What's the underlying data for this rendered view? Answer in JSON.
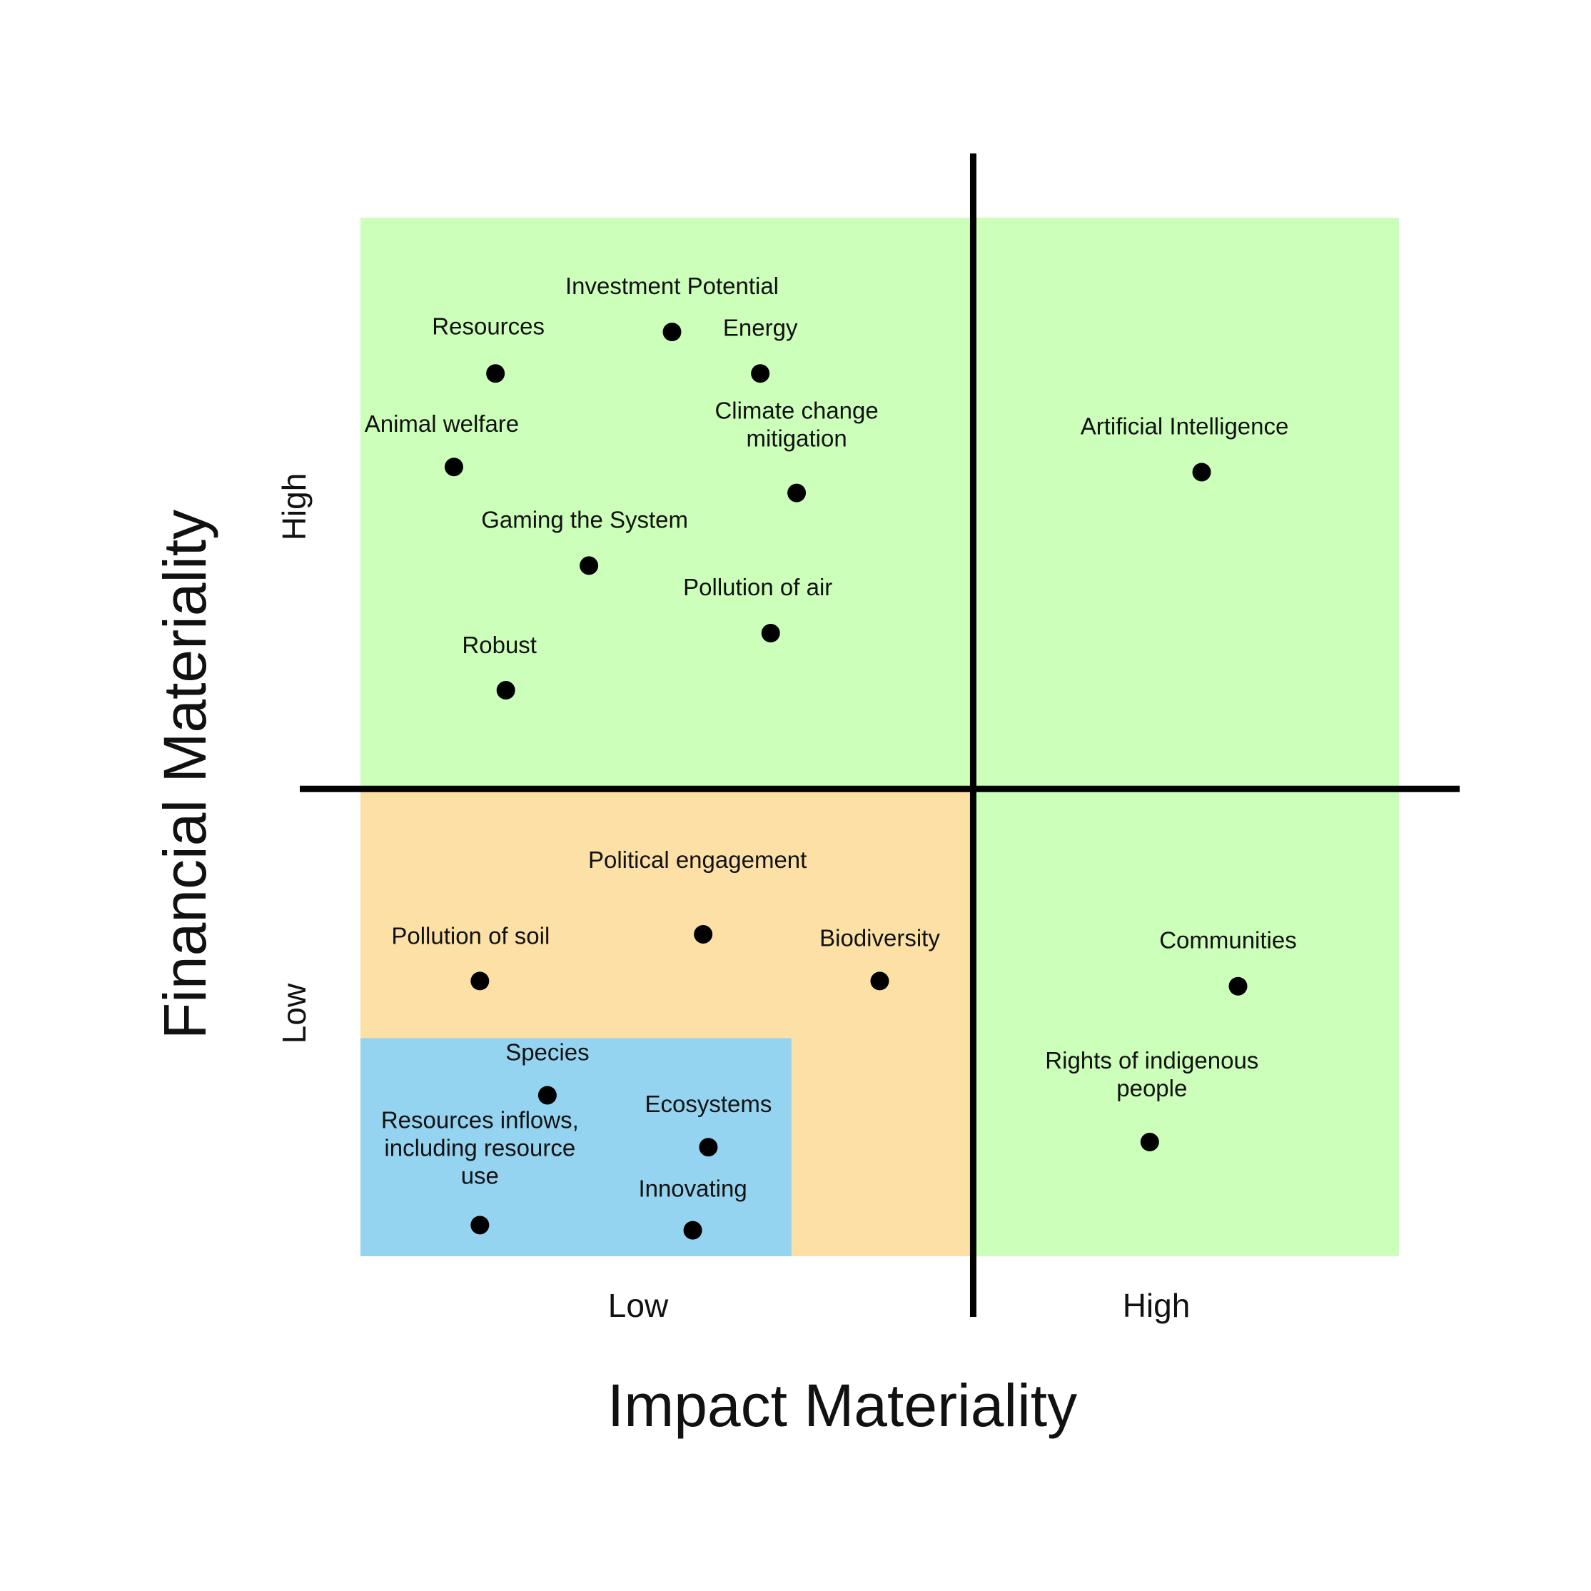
{
  "chart_data": {
    "type": "scatter",
    "title": "",
    "xlabel": "Impact Materiality",
    "ylabel": "Financial Materiality",
    "x_ticks": [
      "Low",
      "High"
    ],
    "y_ticks": [
      "Low",
      "High"
    ],
    "xlim": [
      0,
      100
    ],
    "ylim": [
      0,
      100
    ],
    "grid": false,
    "legend": "none",
    "colors": {
      "green": "#ccffb9",
      "orange": "#fce0a6",
      "blue": "#94d4f0",
      "axis": "#000000",
      "point": "#000000"
    },
    "regions": [
      {
        "color": "green",
        "x": [
          0,
          100
        ],
        "y": [
          0,
          100
        ]
      },
      {
        "color": "orange",
        "x": [
          0,
          59
        ],
        "y": [
          0,
          45
        ]
      },
      {
        "color": "blue",
        "x": [
          0,
          41.5
        ],
        "y": [
          0,
          21
        ]
      }
    ],
    "divider": {
      "x": 59,
      "y": 45
    },
    "points": [
      {
        "label": "Investment Potential",
        "x": 30,
        "y": 89
      },
      {
        "label": "Resources",
        "x": 13,
        "y": 85
      },
      {
        "label": "Energy",
        "x": 38.5,
        "y": 85
      },
      {
        "label": "Animal welfare",
        "x": 9,
        "y": 76
      },
      {
        "label": "Climate change mitigation",
        "x": 42,
        "y": 73.5
      },
      {
        "label": "Artificial Intelligence",
        "x": 81,
        "y": 75.5
      },
      {
        "label": "Gaming the System",
        "x": 22,
        "y": 66.5
      },
      {
        "label": "Pollution of air",
        "x": 39.5,
        "y": 60
      },
      {
        "label": "Robust",
        "x": 14,
        "y": 54.5
      },
      {
        "label": "Political engagement",
        "x": 33,
        "y": 31
      },
      {
        "label": "Pollution of soil",
        "x": 11.5,
        "y": 26.5
      },
      {
        "label": "Biodiversity",
        "x": 50,
        "y": 26.5
      },
      {
        "label": "Communities",
        "x": 84.5,
        "y": 26
      },
      {
        "label": "Species",
        "x": 18,
        "y": 15.5
      },
      {
        "label": "Ecosystems",
        "x": 33.5,
        "y": 10.5
      },
      {
        "label": "Rights of indigenous people",
        "x": 76,
        "y": 11
      },
      {
        "label": "Resources inflows, including resource use",
        "x": 11.5,
        "y": 3
      },
      {
        "label": "Innovating",
        "x": 32,
        "y": 2.5
      }
    ]
  }
}
